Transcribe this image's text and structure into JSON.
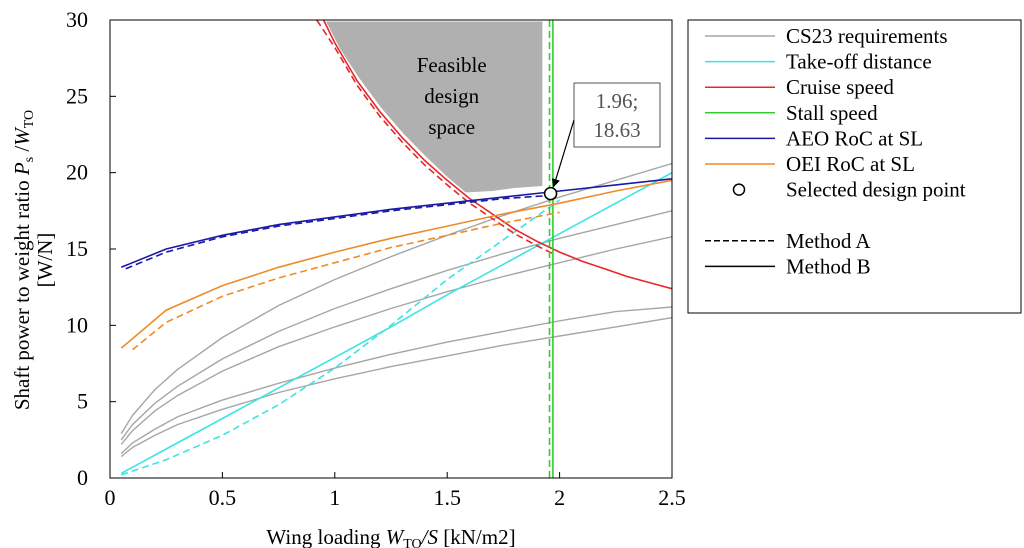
{
  "chart_data": {
    "type": "line",
    "title": "",
    "xlabel": {
      "prefix": "Wing loading ",
      "var": "W",
      "sub": "TO",
      "suffix": "/S [kN/m2]"
    },
    "ylabel": {
      "prefix": "Shaft power to weight ratio ",
      "var1": "P",
      "sub1": "s",
      "mid": " /",
      "var2": "W",
      "sub2": "TO",
      "unit": "[W/N]"
    },
    "xlim": [
      0,
      2.5
    ],
    "ylim": [
      0,
      30
    ],
    "xticks": [
      0,
      0.5,
      1,
      1.5,
      2,
      2.5
    ],
    "xtick_labels": [
      "0",
      "0.5",
      "1",
      "1.5",
      "2",
      "2.5"
    ],
    "yticks": [
      0,
      5,
      10,
      15,
      20,
      25,
      30
    ],
    "ytick_labels": [
      "0",
      "5",
      "10",
      "15",
      "20",
      "25",
      "30"
    ],
    "grid": false,
    "legend_position": "outside-right",
    "legend": [
      {
        "label": "CS23 requirements",
        "color": "#a6a6a6",
        "style": "solid"
      },
      {
        "label": "Take-off distance",
        "color": "#3ee3e3",
        "style": "solid"
      },
      {
        "label": "Cruise speed",
        "color": "#e8262a",
        "style": "solid"
      },
      {
        "label": "Stall speed",
        "color": "#33cc33",
        "style": "solid"
      },
      {
        "label": "AEO RoC at SL",
        "color": "#1a1aa8",
        "style": "solid"
      },
      {
        "label": "OEI RoC at SL",
        "color": "#ef8c2a",
        "style": "solid"
      },
      {
        "label": "Selected design point",
        "color": "#000000",
        "style": "marker"
      },
      {
        "label": "",
        "color": "",
        "style": "spacer"
      },
      {
        "label": "Method A",
        "color": "#000000",
        "style": "dashed"
      },
      {
        "label": "Method B",
        "color": "#000000",
        "style": "solid"
      }
    ],
    "feasible_region": {
      "label_lines": [
        "Feasible",
        "design",
        "space"
      ],
      "color": "#b0b0b0",
      "boundary": [
        [
          0.95,
          30
        ],
        [
          1.02,
          28
        ],
        [
          1.1,
          26.2
        ],
        [
          1.2,
          24.2
        ],
        [
          1.3,
          22.5
        ],
        [
          1.4,
          21.0
        ],
        [
          1.5,
          19.6
        ],
        [
          1.58,
          18.6
        ],
        [
          1.7,
          18.7
        ],
        [
          1.8,
          18.9
        ],
        [
          1.9,
          19.0
        ],
        [
          1.93,
          19.05
        ],
        [
          1.93,
          30
        ]
      ]
    },
    "design_point": {
      "x": 1.96,
      "y": 18.63,
      "label_lines": [
        "1.96;",
        "18.63"
      ]
    },
    "series": [
      {
        "name": "CS23 requirements",
        "method": "B",
        "color": "#a6a6a6",
        "style": "solid",
        "x": [
          0.05,
          0.1,
          0.2,
          0.3,
          0.5,
          0.75,
          1.0,
          1.25,
          1.5,
          1.75,
          2.0,
          2.25,
          2.5
        ],
        "y": [
          2.9,
          4.1,
          5.8,
          7.1,
          9.2,
          11.3,
          13.0,
          14.5,
          15.9,
          17.2,
          18.4,
          19.5,
          20.6
        ]
      },
      {
        "name": "CS23 requirements",
        "method": "B",
        "color": "#a6a6a6",
        "style": "solid",
        "x": [
          0.05,
          0.1,
          0.2,
          0.3,
          0.5,
          0.75,
          1.0,
          1.25,
          1.5,
          1.75,
          2.0,
          2.25,
          2.5
        ],
        "y": [
          2.5,
          3.5,
          4.9,
          6.0,
          7.8,
          9.6,
          11.1,
          12.4,
          13.6,
          14.7,
          15.7,
          16.6,
          17.5
        ]
      },
      {
        "name": "CS23 requirements",
        "method": "B",
        "color": "#a6a6a6",
        "style": "solid",
        "x": [
          0.05,
          0.1,
          0.2,
          0.3,
          0.5,
          0.75,
          1.0,
          1.25,
          1.5,
          1.75,
          2.0,
          2.25,
          2.5
        ],
        "y": [
          2.2,
          3.1,
          4.4,
          5.4,
          7.0,
          8.6,
          9.9,
          11.1,
          12.2,
          13.2,
          14.1,
          15.0,
          15.8
        ]
      },
      {
        "name": "CS23 requirements",
        "method": "B",
        "color": "#a6a6a6",
        "style": "solid",
        "x": [
          0.05,
          0.1,
          0.2,
          0.3,
          0.5,
          0.75,
          1.0,
          1.25,
          1.5,
          1.75,
          2.0,
          2.25,
          2.5
        ],
        "y": [
          1.6,
          2.3,
          3.2,
          4.0,
          5.1,
          6.2,
          7.2,
          8.1,
          8.9,
          9.6,
          10.3,
          10.9,
          11.2
        ]
      },
      {
        "name": "CS23 requirements",
        "method": "B",
        "color": "#a6a6a6",
        "style": "solid",
        "x": [
          0.05,
          0.1,
          0.2,
          0.3,
          0.5,
          0.75,
          1.0,
          1.25,
          1.5,
          1.75,
          2.0,
          2.25,
          2.5
        ],
        "y": [
          1.4,
          2.0,
          2.8,
          3.5,
          4.5,
          5.6,
          6.5,
          7.3,
          8.0,
          8.7,
          9.3,
          9.9,
          10.5
        ]
      },
      {
        "name": "Take-off distance",
        "method": "B",
        "color": "#3ee3e3",
        "style": "solid",
        "x": [
          0.05,
          0.25,
          0.5,
          0.75,
          1.0,
          1.25,
          1.5,
          1.75,
          2.0,
          2.25,
          2.5
        ],
        "y": [
          0.3,
          1.9,
          3.9,
          5.9,
          7.9,
          9.9,
          12.0,
          14.0,
          16.0,
          18.0,
          20.0
        ]
      },
      {
        "name": "Take-off distance",
        "method": "A",
        "color": "#3ee3e3",
        "style": "dashed",
        "x": [
          0.05,
          0.25,
          0.5,
          0.75,
          1.0,
          1.25,
          1.5,
          1.75,
          2.0
        ],
        "y": [
          0.2,
          1.2,
          2.8,
          4.8,
          7.2,
          10.0,
          13.0,
          15.6,
          18.2
        ]
      },
      {
        "name": "Cruise speed",
        "method": "B",
        "color": "#e8262a",
        "style": "solid",
        "x": [
          0.95,
          1.0,
          1.1,
          1.2,
          1.3,
          1.4,
          1.5,
          1.6,
          1.7,
          1.8,
          1.9,
          2.0,
          2.1,
          2.2,
          2.3,
          2.4,
          2.5
        ],
        "y": [
          30.0,
          28.5,
          26.0,
          24.0,
          22.3,
          20.8,
          19.5,
          18.3,
          17.3,
          16.3,
          15.5,
          14.8,
          14.2,
          13.7,
          13.2,
          12.8,
          12.4
        ]
      },
      {
        "name": "Cruise speed",
        "method": "A",
        "color": "#e8262a",
        "style": "dashed",
        "x": [
          0.92,
          1.0,
          1.1,
          1.2,
          1.3,
          1.4,
          1.5,
          1.6,
          1.7,
          1.8,
          1.9,
          1.97
        ],
        "y": [
          30.0,
          28.2,
          25.7,
          23.7,
          22.0,
          20.5,
          19.2,
          18.0,
          17.0,
          16.0,
          15.2,
          14.7
        ]
      },
      {
        "name": "Stall speed",
        "method": "B",
        "color": "#33cc33",
        "style": "solid",
        "x": [
          1.97,
          1.97
        ],
        "y": [
          0,
          30
        ]
      },
      {
        "name": "Stall speed",
        "method": "A",
        "color": "#33cc33",
        "style": "dashed",
        "x": [
          1.955,
          1.955
        ],
        "y": [
          0,
          30
        ]
      },
      {
        "name": "AEO RoC at SL",
        "method": "B",
        "color": "#1a1aa8",
        "style": "solid",
        "x": [
          0.05,
          0.25,
          0.5,
          0.75,
          1.0,
          1.25,
          1.5,
          1.75,
          2.0,
          2.25,
          2.5
        ],
        "y": [
          13.8,
          15.0,
          15.9,
          16.6,
          17.1,
          17.6,
          18.0,
          18.4,
          18.8,
          19.2,
          19.6
        ]
      },
      {
        "name": "AEO RoC at SL",
        "method": "A",
        "color": "#1a1aa8",
        "style": "dashed",
        "x": [
          0.07,
          0.25,
          0.5,
          0.75,
          1.0,
          1.25,
          1.5,
          1.75,
          1.95
        ],
        "y": [
          13.7,
          14.8,
          15.8,
          16.5,
          17.0,
          17.5,
          17.9,
          18.3,
          18.5
        ]
      },
      {
        "name": "OEI RoC at SL",
        "method": "B",
        "color": "#ef8c2a",
        "style": "solid",
        "x": [
          0.05,
          0.25,
          0.5,
          0.75,
          1.0,
          1.25,
          1.5,
          1.75,
          2.0,
          2.25,
          2.5
        ],
        "y": [
          8.5,
          11.0,
          12.6,
          13.8,
          14.8,
          15.7,
          16.5,
          17.3,
          18.0,
          18.8,
          19.5
        ]
      },
      {
        "name": "OEI RoC at SL",
        "method": "A",
        "color": "#ef8c2a",
        "style": "dashed",
        "x": [
          0.1,
          0.25,
          0.5,
          0.75,
          1.0,
          1.25,
          1.5,
          1.75,
          2.0
        ],
        "y": [
          8.4,
          10.2,
          11.9,
          13.1,
          14.1,
          15.1,
          15.9,
          16.7,
          17.4
        ]
      }
    ]
  }
}
